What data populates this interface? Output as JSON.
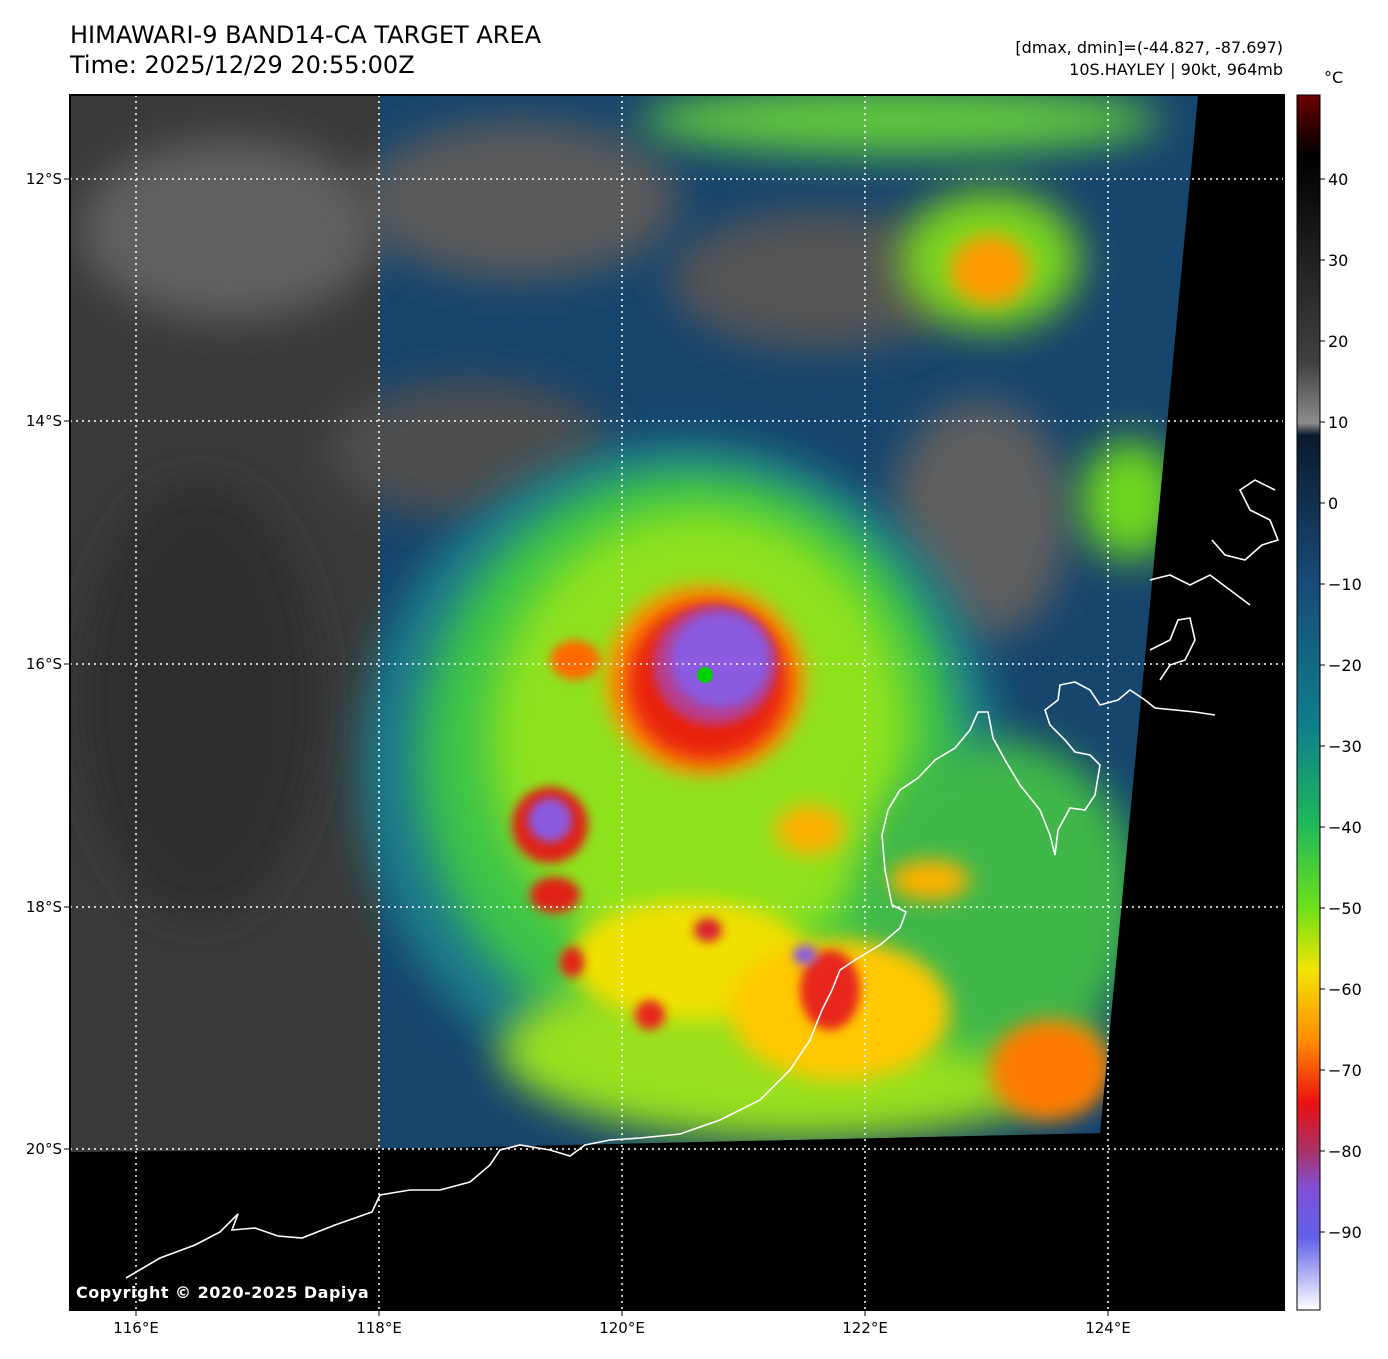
{
  "header": {
    "title_line1": "HIMAWARI-9 BAND14-CA TARGET AREA",
    "title_line2": "Time: 2025/12/29 20:55:00Z",
    "dmax_dmin": "[dmax, dmin]=(-44.827, -87.697)",
    "storm": "10S.HAYLEY | 90kt, 964mb"
  },
  "map": {
    "lon_labels": [
      "116°E",
      "118°E",
      "120°E",
      "122°E",
      "124°E"
    ],
    "lat_labels": [
      "12°S",
      "14°S",
      "16°S",
      "18°S",
      "20°S"
    ],
    "copyright": "Copyright © 2020-2025 Dapiya"
  },
  "colorbar": {
    "unit": "°C",
    "ticks": [
      "40",
      "30",
      "20",
      "10",
      "0",
      "−10",
      "−20",
      "−30",
      "−40",
      "−50",
      "−60",
      "−70",
      "−80",
      "−90"
    ]
  }
}
